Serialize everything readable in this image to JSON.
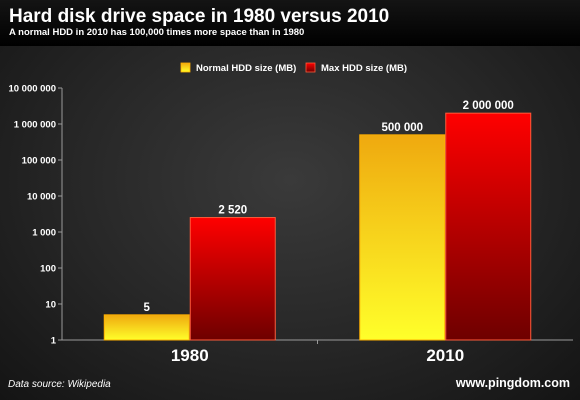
{
  "header": {
    "title": "Hard disk drive space in 1980 versus 2010",
    "subtitle": "A normal HDD in 2010 has 100,000 times more space than in 1980"
  },
  "footer": {
    "source": "Data source: Wikipedia",
    "credit": "www.pingdom.com"
  },
  "chart_data": {
    "type": "bar",
    "title": "Hard disk drive space in 1980 versus 2010",
    "subtitle": "A normal HDD in 2010 has 100,000 times more space than in 1980",
    "categories": [
      "1980",
      "2010"
    ],
    "series": [
      {
        "name": "Normal HDD size (MB)",
        "values": [
          5,
          500000
        ],
        "labels": [
          "5",
          "500 000"
        ],
        "color": "#f5c400"
      },
      {
        "name": "Max HDD size (MB)",
        "values": [
          2520,
          2000000
        ],
        "labels": [
          "2 520",
          "2 000 000"
        ],
        "color": "#e80000"
      }
    ],
    "y_scale": "log",
    "ylim": [
      1,
      10000000
    ],
    "y_ticks": [
      1,
      10,
      100,
      1000,
      10000,
      100000,
      1000000,
      10000000
    ],
    "y_tick_labels": [
      "1",
      "10",
      "100",
      "1 000",
      "10 000",
      "100 000",
      "1 000 000",
      "10 000 000"
    ],
    "grid": false,
    "legend_position": "top-center"
  }
}
